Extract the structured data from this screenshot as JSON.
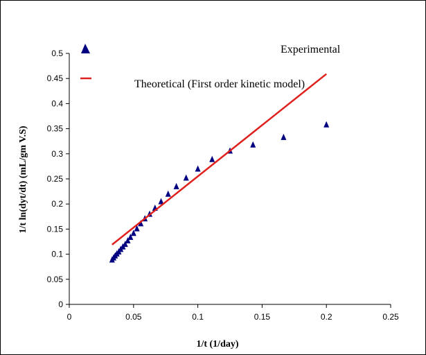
{
  "chart_data": {
    "type": "scatter",
    "xlabel": "1/t (1/day)",
    "ylabel": "1/t ln(dyt/dt) (mL/gm V.S)",
    "xlim": [
      0,
      0.25
    ],
    "ylim": [
      0,
      0.5
    ],
    "x_ticks": [
      "0",
      "0.05",
      "0.1",
      "0.15",
      "0.2",
      "0.25"
    ],
    "y_ticks": [
      "0",
      "0.05",
      "0.1",
      "0.15",
      "0.2",
      "0.25",
      "0.3",
      "0.35",
      "0.4",
      "0.45",
      "0.5"
    ],
    "grid": false,
    "legend_position": "top-right",
    "series": [
      {
        "name": "Experimental",
        "type": "scatter",
        "marker": "triangle",
        "color": "#000080",
        "points": [
          [
            0.0333,
            0.089
          ],
          [
            0.0345,
            0.093
          ],
          [
            0.0357,
            0.097
          ],
          [
            0.037,
            0.101
          ],
          [
            0.0385,
            0.105
          ],
          [
            0.04,
            0.11
          ],
          [
            0.0417,
            0.115
          ],
          [
            0.0435,
            0.12
          ],
          [
            0.0455,
            0.127
          ],
          [
            0.0476,
            0.134
          ],
          [
            0.05,
            0.142
          ],
          [
            0.0526,
            0.151
          ],
          [
            0.0556,
            0.161
          ],
          [
            0.0588,
            0.171
          ],
          [
            0.0625,
            0.18
          ],
          [
            0.0667,
            0.192
          ],
          [
            0.0714,
            0.205
          ],
          [
            0.0769,
            0.22
          ],
          [
            0.0833,
            0.235
          ],
          [
            0.0909,
            0.252
          ],
          [
            0.1,
            0.27
          ],
          [
            0.1111,
            0.289
          ],
          [
            0.125,
            0.306
          ],
          [
            0.1429,
            0.318
          ],
          [
            0.1667,
            0.333
          ],
          [
            0.2,
            0.358
          ]
        ]
      },
      {
        "name": "Theoretical (First order kinetic model)",
        "type": "line",
        "color": "#e0201c",
        "points": [
          [
            0.0333,
            0.119
          ],
          [
            0.2,
            0.459
          ]
        ]
      }
    ]
  }
}
